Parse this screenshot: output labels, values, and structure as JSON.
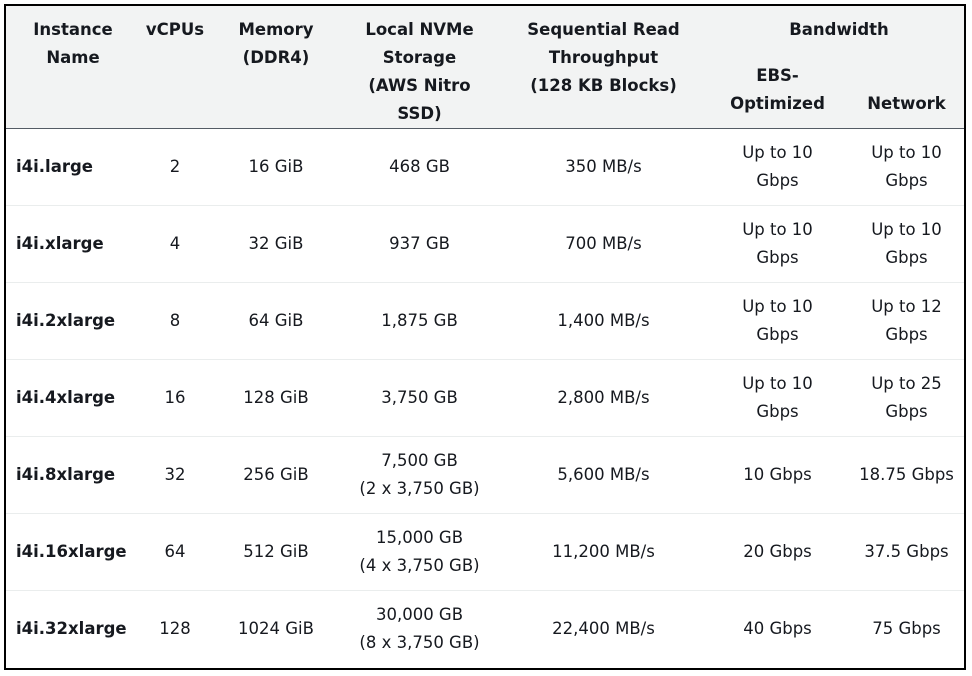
{
  "header": {
    "instance_name": [
      "Instance",
      "Name"
    ],
    "vcpus": "vCPUs",
    "memory": [
      "Memory",
      "(DDR4)"
    ],
    "storage": [
      "Local NVMe",
      "Storage",
      "(AWS Nitro SSD)"
    ],
    "throughput": [
      "Sequential Read",
      "Throughput",
      "(128 KB Blocks)"
    ],
    "bandwidth": "Bandwidth",
    "ebs": [
      "EBS-",
      "Optimized"
    ],
    "network": "Network"
  },
  "rows": [
    {
      "name": "i4i.large",
      "vcpus": "2",
      "memory": "16 GiB",
      "storage": [
        "468 GB"
      ],
      "throughput": "350 MB/s",
      "ebs": [
        "Up to 10",
        "Gbps"
      ],
      "network": [
        "Up to 10",
        "Gbps"
      ]
    },
    {
      "name": "i4i.xlarge",
      "vcpus": "4",
      "memory": "32 GiB",
      "storage": [
        "937 GB"
      ],
      "throughput": "700 MB/s",
      "ebs": [
        "Up to 10",
        "Gbps"
      ],
      "network": [
        "Up to 10",
        "Gbps"
      ]
    },
    {
      "name": "i4i.2xlarge",
      "vcpus": "8",
      "memory": "64 GiB",
      "storage": [
        "1,875 GB"
      ],
      "throughput": "1,400 MB/s",
      "ebs": [
        "Up to 10",
        "Gbps"
      ],
      "network": [
        "Up to 12",
        "Gbps"
      ]
    },
    {
      "name": "i4i.4xlarge",
      "vcpus": "16",
      "memory": "128 GiB",
      "storage": [
        "3,750 GB"
      ],
      "throughput": "2,800 MB/s",
      "ebs": [
        "Up to 10",
        "Gbps"
      ],
      "network": [
        "Up to 25",
        "Gbps"
      ]
    },
    {
      "name": "i4i.8xlarge",
      "vcpus": "32",
      "memory": "256 GiB",
      "storage": [
        "7,500 GB",
        "(2 x 3,750 GB)"
      ],
      "throughput": "5,600 MB/s",
      "ebs": [
        "10 Gbps"
      ],
      "network": [
        "18.75 Gbps"
      ]
    },
    {
      "name": "i4i.16xlarge",
      "vcpus": "64",
      "memory": "512 GiB",
      "storage": [
        "15,000 GB",
        "(4 x 3,750 GB)"
      ],
      "throughput": "11,200 MB/s",
      "ebs": [
        "20 Gbps"
      ],
      "network": [
        "37.5 Gbps"
      ]
    },
    {
      "name": "i4i.32xlarge",
      "vcpus": "128",
      "memory": "1024 GiB",
      "storage": [
        "30,000 GB",
        "(8 x 3,750 GB)"
      ],
      "throughput": "22,400 MB/s",
      "ebs": [
        "40 Gbps"
      ],
      "network": [
        "75 Gbps"
      ]
    }
  ]
}
